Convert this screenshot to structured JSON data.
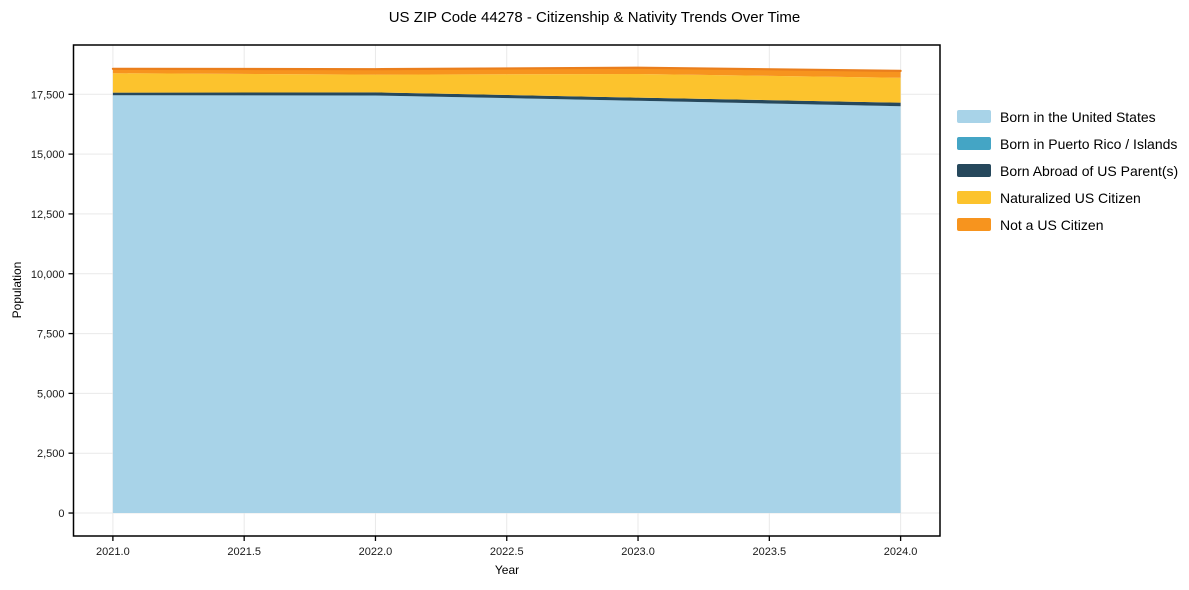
{
  "chart_data": {
    "type": "area",
    "stacked": true,
    "title": "US ZIP Code 44278 - Citizenship & Nativity Trends Over Time",
    "xlabel": "Year",
    "ylabel": "Population",
    "x": [
      2021,
      2022,
      2023,
      2024
    ],
    "series": [
      {
        "name": "Born in the United States",
        "color": "#A8D3E8",
        "values": [
          17460,
          17450,
          17230,
          17000
        ]
      },
      {
        "name": "Born in Puerto Rico / Islands",
        "color": "#44A5C5",
        "values": [
          0,
          0,
          0,
          0
        ]
      },
      {
        "name": "Born Abroad of US Parent(s)",
        "color": "#26485C",
        "values": [
          110,
          130,
          130,
          150
        ]
      },
      {
        "name": "Naturalized US Citizen",
        "color": "#FCC32D",
        "values": [
          810,
          740,
          990,
          1040
        ]
      },
      {
        "name": "Not a US Citizen",
        "color": "#F7941E",
        "edge_color": "#EA7E1C",
        "values": [
          185,
          230,
          260,
          290
        ]
      }
    ],
    "xlim": [
      2020.85,
      2024.15
    ],
    "ylim": [
      -960,
      19560
    ],
    "xticks": {
      "values": [
        2021.0,
        2021.5,
        2022.0,
        2022.5,
        2023.0,
        2023.5,
        2024.0
      ],
      "labels": [
        "2021.0",
        "2021.5",
        "2022.0",
        "2022.5",
        "2023.0",
        "2023.5",
        "2024.0"
      ]
    },
    "yticks": {
      "values": [
        0,
        2500,
        5000,
        7500,
        10000,
        12500,
        15000,
        17500
      ],
      "labels": [
        "0",
        "2,500",
        "5,000",
        "7,500",
        "10,000",
        "12,500",
        "15,000",
        "17,500"
      ]
    },
    "grid": true,
    "grid_color": "#E9E9E9",
    "spine_color": "#000000",
    "tick_label_color": "#1a1a1a",
    "legend_position": "right"
  }
}
